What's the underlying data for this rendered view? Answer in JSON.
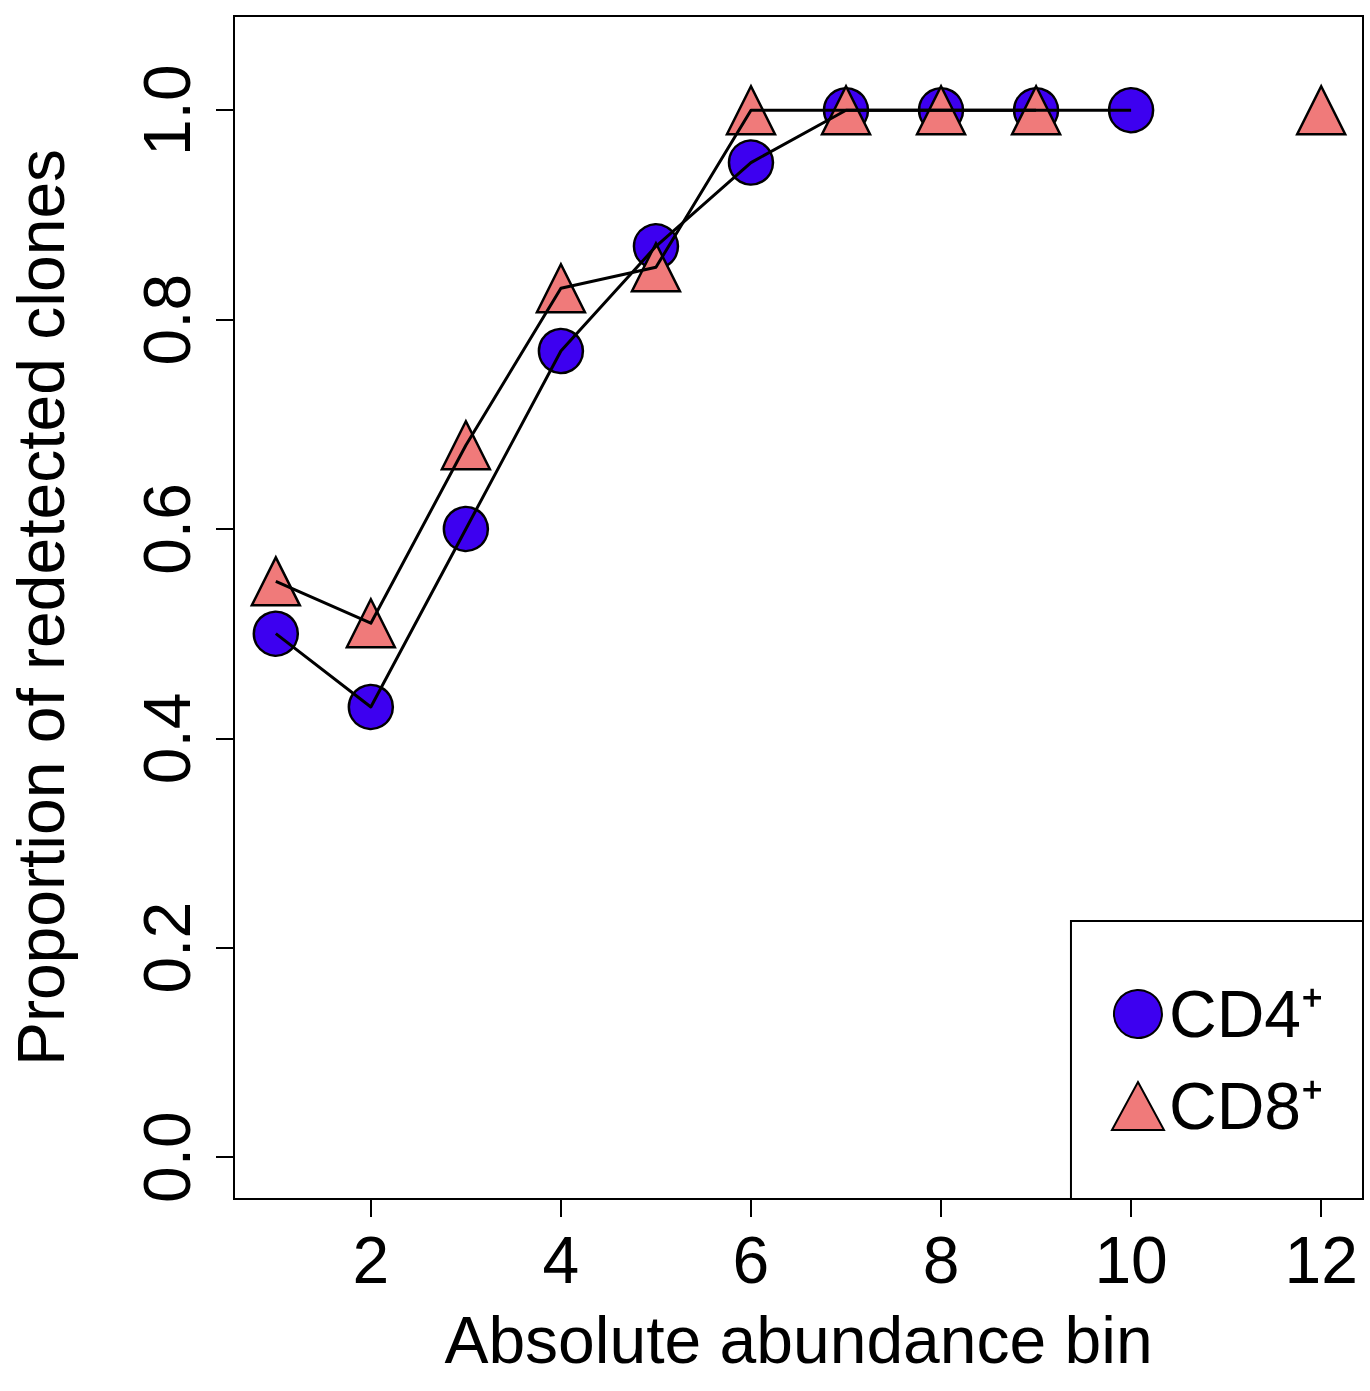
{
  "chart_data": {
    "type": "line",
    "xlabel": "Absolute abundance bin",
    "ylabel": "Proportion of redetected clones",
    "x": [
      1,
      2,
      3,
      4,
      5,
      6,
      7,
      8,
      9,
      10,
      11,
      12
    ],
    "series": [
      {
        "color": "#000000",
        "marker": "none",
        "values": [
          0.5,
          0.43,
          0.6,
          0.77,
          0.87,
          0.95,
          1.0,
          1.0,
          1.0,
          1.0,
          null,
          null
        ]
      },
      {
        "color": "#000000",
        "marker": "none",
        "values": [
          0.55,
          0.51,
          0.68,
          0.83,
          0.85,
          1.0,
          1.0,
          1.0,
          1.0,
          null,
          null,
          null
        ]
      },
      {
        "type": "scatter",
        "name": "CD4⁺",
        "color": "#3d00f0",
        "marker": "circle",
        "values": [
          0.5,
          0.43,
          0.6,
          0.77,
          0.87,
          0.95,
          1.0,
          1.0,
          1.0,
          1.0,
          null,
          null
        ]
      },
      {
        "type": "scatter",
        "name": "CD8⁺",
        "color": "#f07a7a",
        "marker": "triangle",
        "values": [
          0.55,
          0.51,
          0.68,
          0.83,
          0.85,
          1.0,
          1.0,
          1.0,
          1.0,
          null,
          null,
          1.0
        ]
      }
    ],
    "xlim": [
      0.56,
      12.44
    ],
    "xticks": [
      2,
      4,
      6,
      8,
      10,
      12
    ],
    "ylim": [
      -0.04,
      1.09
    ],
    "yticks": [
      {
        "value": 0,
        "label": "0.0"
      },
      0.2,
      0.4,
      0.6,
      0.8,
      {
        "value": 1,
        "label": "1.0"
      }
    ],
    "grid": false,
    "legend": "bottom right",
    "line_style": "solid"
  }
}
